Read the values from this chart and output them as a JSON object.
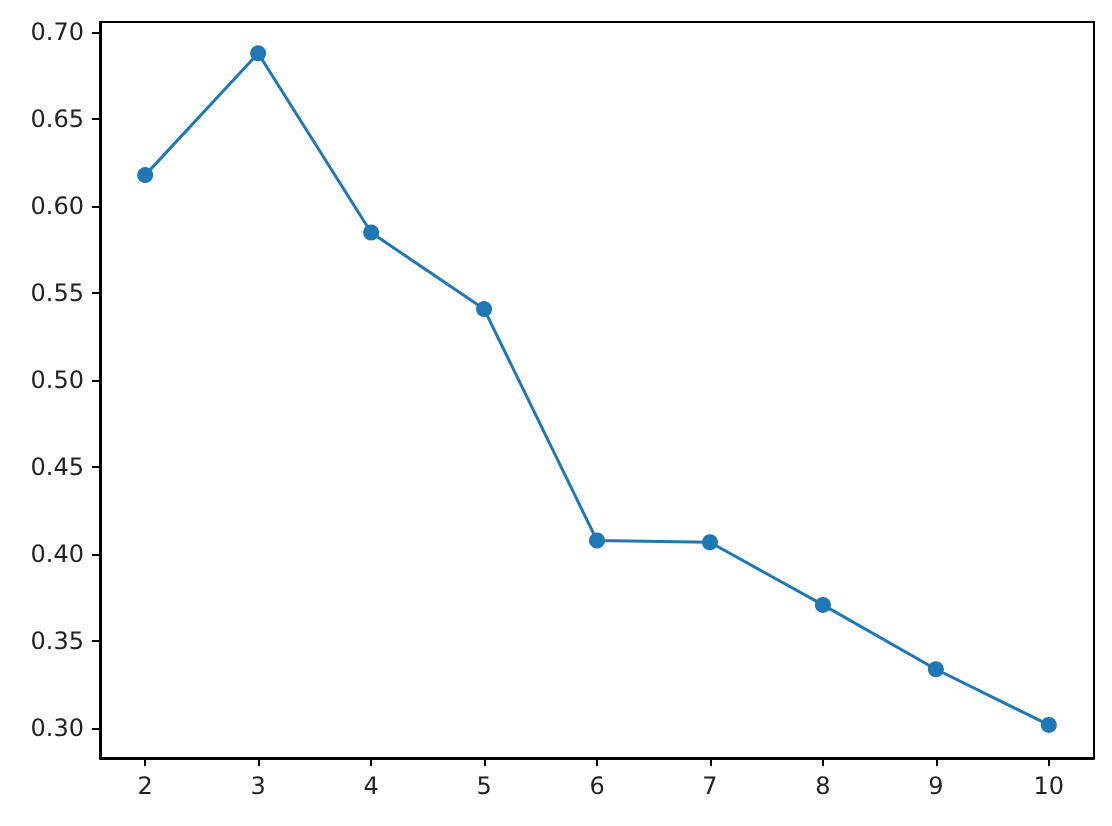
{
  "chart_data": {
    "type": "line",
    "x": [
      2,
      3,
      4,
      5,
      6,
      7,
      8,
      9,
      10
    ],
    "series": [
      {
        "color": "#1f77b4",
        "values": [
          0.618,
          0.688,
          0.585,
          0.541,
          0.408,
          0.407,
          0.371,
          0.334,
          0.302
        ]
      }
    ],
    "xlim": [
      1.6,
      10.4
    ],
    "xticks": [
      2,
      3,
      4,
      5,
      6,
      7,
      8,
      9,
      10
    ],
    "ylim": [
      0.283,
      0.706
    ],
    "yticks": [
      {
        "value": 0.3,
        "label": "0.30"
      },
      {
        "value": 0.35,
        "label": "0.35"
      },
      {
        "value": 0.4,
        "label": "0.40"
      },
      {
        "value": 0.45,
        "label": "0.45"
      },
      {
        "value": 0.5,
        "label": "0.50"
      },
      {
        "value": 0.55,
        "label": "0.55"
      },
      {
        "value": 0.6,
        "label": "0.60"
      },
      {
        "value": 0.65,
        "label": "0.65"
      },
      {
        "value": 0.7,
        "label": "0.70"
      }
    ],
    "grid": false,
    "marker": "circle",
    "line_style": "solid"
  }
}
